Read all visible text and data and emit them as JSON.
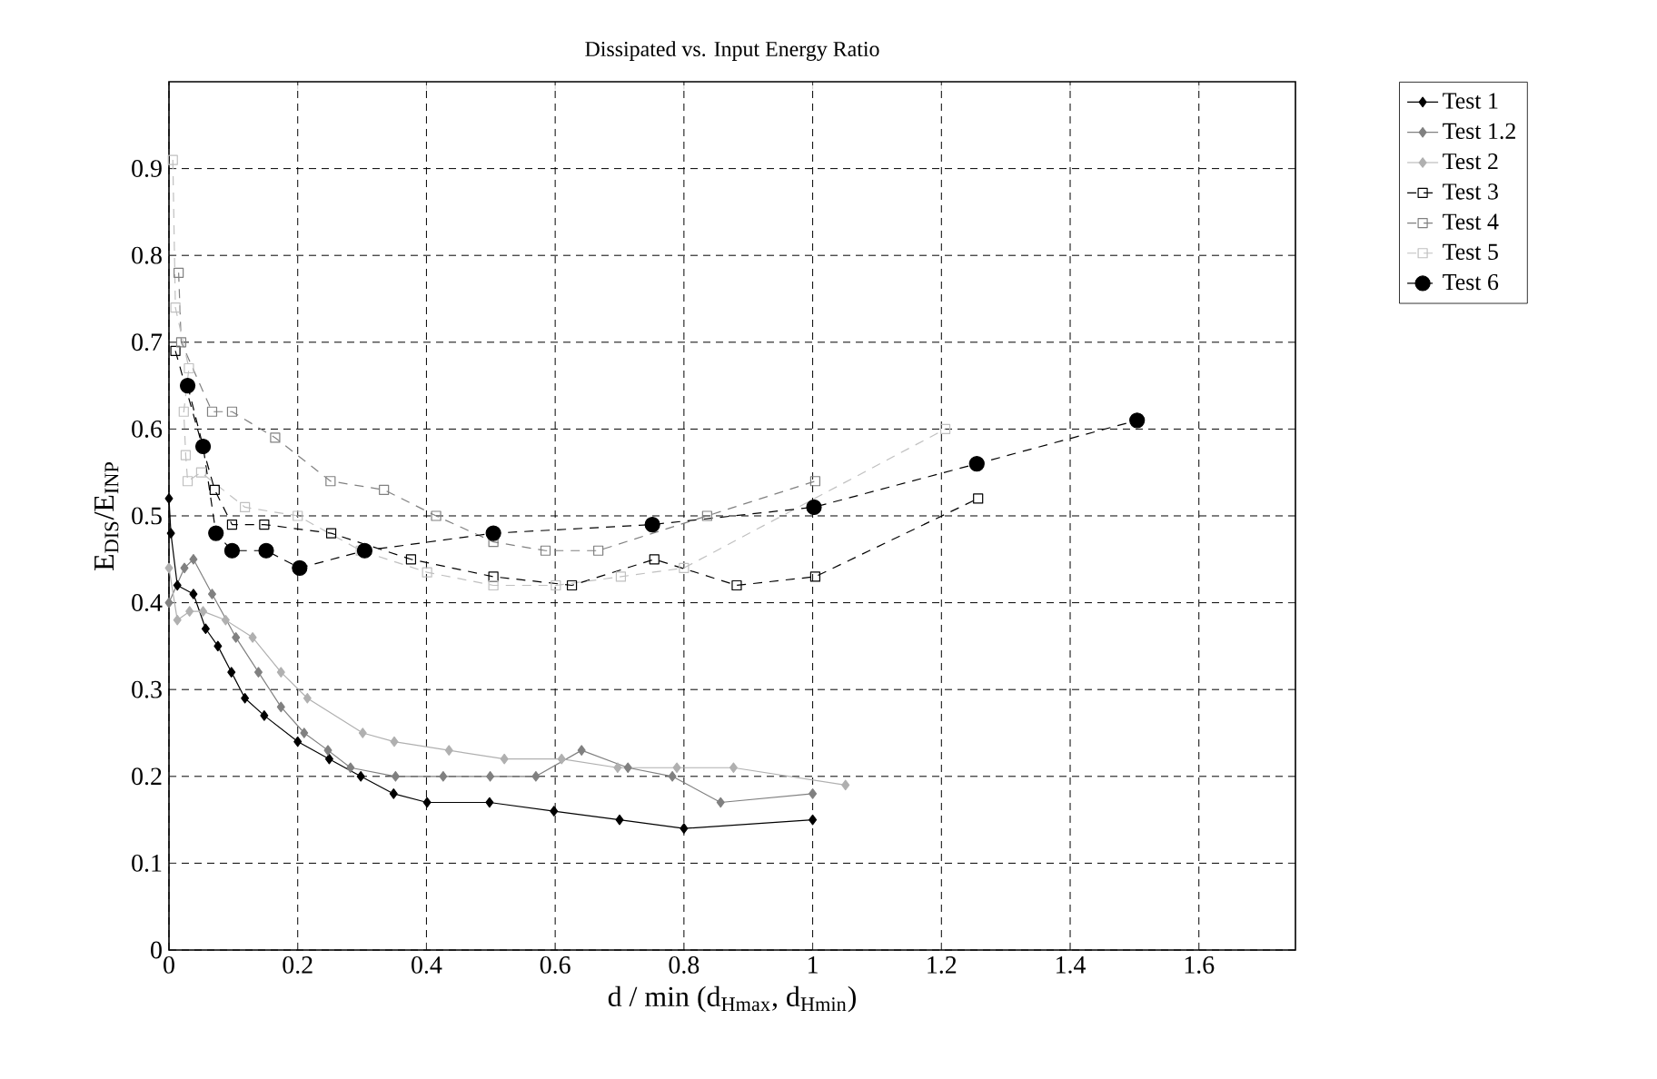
{
  "chart_data": {
    "type": "line",
    "title": "Dissipated vs. Input Energy Ratio",
    "xlabel": "d / min (d$_{Hmax}$, d$_{Hmin}$)",
    "ylabel": "E$_{DIS}$/E$_{INP}$",
    "xlim": [
      0,
      1.75
    ],
    "ylim": [
      0,
      1.0
    ],
    "xticks": [
      0,
      0.2,
      0.4,
      0.6,
      0.8,
      1,
      1.2,
      1.4,
      1.6
    ],
    "yticks": [
      0,
      0.1,
      0.2,
      0.3,
      0.4,
      0.5,
      0.6,
      0.7,
      0.8,
      0.9
    ],
    "grid": true,
    "legend": "top right",
    "series": [
      {
        "name": "Test 1",
        "color": "#000000",
        "marker": "diamond",
        "line_style": "solid",
        "x": [
          0,
          0.003,
          0.013,
          0.038,
          0.057,
          0.076,
          0.097,
          0.118,
          0.148,
          0.2,
          0.249,
          0.298,
          0.349,
          0.401,
          0.498,
          0.598,
          0.7,
          0.8,
          1.0
        ],
        "values": [
          0.52,
          0.48,
          0.42,
          0.41,
          0.37,
          0.35,
          0.32,
          0.29,
          0.27,
          0.24,
          0.22,
          0.2,
          0.18,
          0.17,
          0.17,
          0.16,
          0.15,
          0.14,
          0.15
        ]
      },
      {
        "name": "Test 1.2",
        "color": "#808080",
        "marker": "diamond",
        "line_style": "solid",
        "x": [
          0,
          0.024,
          0.038,
          0.067,
          0.104,
          0.139,
          0.174,
          0.21,
          0.247,
          0.282,
          0.352,
          0.426,
          0.499,
          0.57,
          0.641,
          0.713,
          0.782,
          0.857,
          1.0
        ],
        "values": [
          0.4,
          0.44,
          0.45,
          0.41,
          0.36,
          0.32,
          0.28,
          0.25,
          0.23,
          0.21,
          0.2,
          0.2,
          0.2,
          0.2,
          0.23,
          0.21,
          0.2,
          0.17,
          0.18
        ]
      },
      {
        "name": "Test 2",
        "color": "#b0b0b0",
        "marker": "diamond",
        "line_style": "solid",
        "x": [
          0,
          0.013,
          0.032,
          0.053,
          0.088,
          0.13,
          0.174,
          0.215,
          0.301,
          0.35,
          0.435,
          0.521,
          0.61,
          0.697,
          0.789,
          0.877,
          1.051
        ],
        "values": [
          0.44,
          0.38,
          0.39,
          0.39,
          0.38,
          0.36,
          0.32,
          0.29,
          0.25,
          0.24,
          0.23,
          0.22,
          0.22,
          0.21,
          0.21,
          0.21,
          0.19
        ]
      },
      {
        "name": "Test 3",
        "color": "#000000",
        "marker": "square",
        "line_style": "dashed",
        "x": [
          0.01,
          0.071,
          0.098,
          0.148,
          0.252,
          0.376,
          0.504,
          0.626,
          0.754,
          0.882,
          1.004,
          1.257
        ],
        "values": [
          0.69,
          0.53,
          0.49,
          0.49,
          0.48,
          0.45,
          0.43,
          0.42,
          0.45,
          0.42,
          0.43,
          0.52
        ]
      },
      {
        "name": "Test 4",
        "color": "#808080",
        "marker": "square",
        "line_style": "dashed",
        "x": [
          0.015,
          0.019,
          0.067,
          0.098,
          0.165,
          0.251,
          0.334,
          0.415,
          0.504,
          0.585,
          0.667,
          0.836,
          1.004
        ],
        "values": [
          0.78,
          0.7,
          0.62,
          0.62,
          0.59,
          0.54,
          0.53,
          0.5,
          0.47,
          0.46,
          0.46,
          0.5,
          0.54
        ]
      },
      {
        "name": "Test 5",
        "color": "#c0c0c0",
        "marker": "square",
        "line_style": "dashed",
        "x": [
          0.006,
          0.01,
          0.031,
          0.023,
          0.026,
          0.029,
          0.05,
          0.118,
          0.2,
          0.298,
          0.401,
          0.504,
          0.601,
          0.702,
          0.8,
          1.206
        ],
        "values": [
          0.91,
          0.74,
          0.67,
          0.62,
          0.57,
          0.54,
          0.55,
          0.51,
          0.5,
          0.46,
          0.435,
          0.42,
          0.42,
          0.43,
          0.44,
          0.6
        ]
      },
      {
        "name": "Test 6",
        "color": "#000000",
        "marker": "circle",
        "line_style": "dashed",
        "x": [
          0.029,
          0.053,
          0.073,
          0.098,
          0.151,
          0.203,
          0.304,
          0.504,
          0.751,
          1.002,
          1.255,
          1.504
        ],
        "values": [
          0.65,
          0.58,
          0.48,
          0.46,
          0.46,
          0.44,
          0.46,
          0.48,
          0.49,
          0.51,
          0.56,
          0.61
        ]
      }
    ]
  }
}
